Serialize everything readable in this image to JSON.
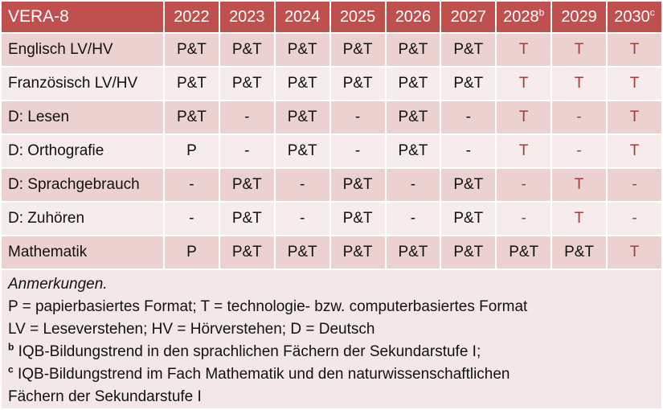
{
  "table": {
    "title": "VERA-8",
    "year_columns": [
      {
        "label": "2022",
        "sup": ""
      },
      {
        "label": "2023",
        "sup": ""
      },
      {
        "label": "2024",
        "sup": ""
      },
      {
        "label": "2025",
        "sup": ""
      },
      {
        "label": "2026",
        "sup": ""
      },
      {
        "label": "2027",
        "sup": ""
      },
      {
        "label": "2028",
        "sup": "b"
      },
      {
        "label": "2029",
        "sup": ""
      },
      {
        "label": "2030",
        "sup": "c"
      }
    ],
    "rows": [
      {
        "label": "Englisch LV/HV",
        "band": "dark",
        "cells": [
          {
            "text": "P&T",
            "red": false
          },
          {
            "text": "P&T",
            "red": false
          },
          {
            "text": "P&T",
            "red": false
          },
          {
            "text": "P&T",
            "red": false
          },
          {
            "text": "P&T",
            "red": false
          },
          {
            "text": "P&T",
            "red": false
          },
          {
            "text": "T",
            "red": true
          },
          {
            "text": "T",
            "red": true
          },
          {
            "text": "T",
            "red": true
          }
        ]
      },
      {
        "label": "Französisch LV/HV",
        "band": "light",
        "cells": [
          {
            "text": "P&T",
            "red": false
          },
          {
            "text": "P&T",
            "red": false
          },
          {
            "text": "P&T",
            "red": false
          },
          {
            "text": "P&T",
            "red": false
          },
          {
            "text": "P&T",
            "red": false
          },
          {
            "text": "P&T",
            "red": false
          },
          {
            "text": "T",
            "red": true
          },
          {
            "text": "T",
            "red": true
          },
          {
            "text": "T",
            "red": true
          }
        ]
      },
      {
        "label": "D: Lesen",
        "band": "dark",
        "cells": [
          {
            "text": "P&T",
            "red": false
          },
          {
            "text": "-",
            "red": false
          },
          {
            "text": "P&T",
            "red": false
          },
          {
            "text": "-",
            "red": false
          },
          {
            "text": "P&T",
            "red": false
          },
          {
            "text": "-",
            "red": false
          },
          {
            "text": "T",
            "red": true
          },
          {
            "text": "-",
            "red": true
          },
          {
            "text": "T",
            "red": true
          }
        ]
      },
      {
        "label": "D: Orthografie",
        "band": "light",
        "cells": [
          {
            "text": "P",
            "red": false
          },
          {
            "text": "-",
            "red": false
          },
          {
            "text": "P&T",
            "red": false
          },
          {
            "text": "-",
            "red": false
          },
          {
            "text": "P&T",
            "red": false
          },
          {
            "text": "-",
            "red": false
          },
          {
            "text": "T",
            "red": true
          },
          {
            "text": "-",
            "red": true
          },
          {
            "text": "T",
            "red": true
          }
        ]
      },
      {
        "label": "D: Sprachgebrauch",
        "band": "dark",
        "cells": [
          {
            "text": "-",
            "red": false
          },
          {
            "text": "P&T",
            "red": false
          },
          {
            "text": "-",
            "red": false
          },
          {
            "text": "P&T",
            "red": false
          },
          {
            "text": "-",
            "red": false
          },
          {
            "text": "P&T",
            "red": false
          },
          {
            "text": "-",
            "red": true
          },
          {
            "text": "T",
            "red": true
          },
          {
            "text": "-",
            "red": true
          }
        ]
      },
      {
        "label": "D: Zuhören",
        "band": "light",
        "cells": [
          {
            "text": "-",
            "red": false
          },
          {
            "text": "P&T",
            "red": false
          },
          {
            "text": "-",
            "red": false
          },
          {
            "text": "P&T",
            "red": false
          },
          {
            "text": "-",
            "red": false
          },
          {
            "text": "P&T",
            "red": false
          },
          {
            "text": "-",
            "red": true
          },
          {
            "text": "T",
            "red": true
          },
          {
            "text": "-",
            "red": true
          }
        ]
      },
      {
        "label": "Mathematik",
        "band": "dark",
        "cells": [
          {
            "text": "P",
            "red": false
          },
          {
            "text": "P&T",
            "red": false
          },
          {
            "text": "P&T",
            "red": false
          },
          {
            "text": "P&T",
            "red": false
          },
          {
            "text": "P&T",
            "red": false
          },
          {
            "text": "P&T",
            "red": false
          },
          {
            "text": "P&T",
            "red": false
          },
          {
            "text": "P&T",
            "red": false
          },
          {
            "text": "T",
            "red": true
          }
        ]
      }
    ]
  },
  "notes": {
    "lines": [
      {
        "sup": "",
        "italic": true,
        "text": "Anmerkungen."
      },
      {
        "sup": "",
        "italic": false,
        "text": "P = papierbasiertes Format; T = technologie- bzw. computerbasiertes Format"
      },
      {
        "sup": "",
        "italic": false,
        "text": "LV = Leseverstehen; HV = Hörverstehen; D = Deutsch"
      },
      {
        "sup": "b",
        "italic": false,
        "text": "IQB-Bildungstrend in den sprachlichen Fächern der Sekundarstufe I;"
      },
      {
        "sup": "c",
        "italic": false,
        "text": "IQB-Bildungstrend im Fach Mathematik und den naturwissenschaftlichen"
      },
      {
        "sup": "",
        "italic": false,
        "text": "Fächern der Sekundarstufe I"
      }
    ]
  },
  "colors": {
    "header_bg": "#C0504D",
    "band_dark": "#EBD2D1",
    "band_light": "#F5ECEB",
    "notes_bg": "#F3E8E7",
    "accent_red": "#9E3E3B",
    "header_text": "#FFFFFF"
  }
}
